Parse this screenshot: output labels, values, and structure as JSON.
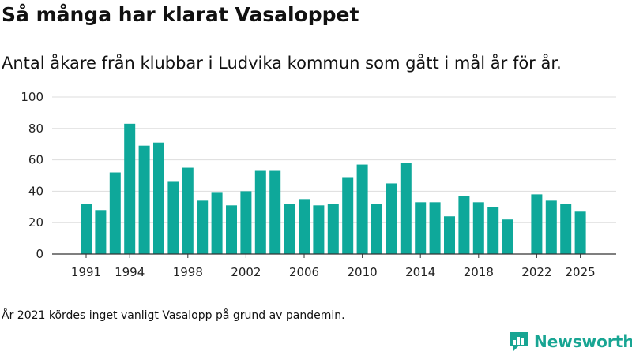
{
  "title": "Så många har klarat Vasaloppet",
  "subtitle": "Antal åkare från klubbar i Ludvika kommun som gått i mål år för år.",
  "note": "År 2021 kördes inget vanligt Vasalopp på grund av pandemin.",
  "brand": {
    "name": "Newsworthy",
    "icon": "newsworthy-logo-icon"
  },
  "colors": {
    "bar": "#0ea89a",
    "grid": "#dddddd",
    "axis": "#333333",
    "brand": "#18a593"
  },
  "chart_data": {
    "type": "bar",
    "x": [
      1991,
      1992,
      1993,
      1994,
      1995,
      1996,
      1997,
      1998,
      1999,
      2000,
      2001,
      2002,
      2003,
      2004,
      2005,
      2006,
      2007,
      2008,
      2009,
      2010,
      2011,
      2012,
      2013,
      2014,
      2015,
      2016,
      2017,
      2018,
      2019,
      2020,
      2021,
      2022,
      2023,
      2024,
      2025
    ],
    "values": [
      32,
      28,
      52,
      83,
      69,
      71,
      46,
      55,
      34,
      39,
      31,
      40,
      53,
      53,
      32,
      35,
      31,
      32,
      49,
      57,
      32,
      45,
      58,
      33,
      33,
      24,
      37,
      33,
      30,
      22,
      null,
      38,
      34,
      32,
      27
    ],
    "xticks": [
      "1991",
      "1994",
      "1998",
      "2002",
      "2006",
      "2010",
      "2014",
      "2018",
      "2022",
      "2025"
    ],
    "yticks": [
      "0",
      "20",
      "40",
      "60",
      "80",
      "100"
    ],
    "ylim": [
      0,
      100
    ],
    "grid": true
  }
}
